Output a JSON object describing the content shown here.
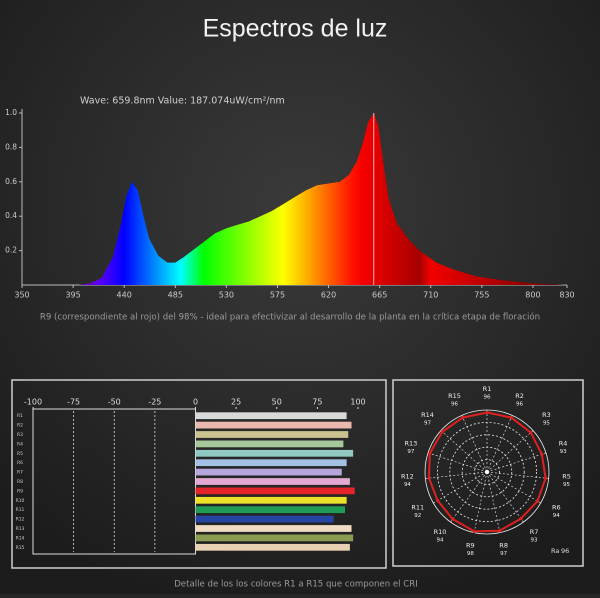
{
  "title": "Espectros de luz",
  "chart_data": [
    {
      "type": "area",
      "annotation": "Wave: 659.8nm Value: 187.074uW/cm²/nm",
      "marker_x": 659.8,
      "caption": "R9 (correspondiente al rojo) del 98% - ideal para efectivizar al desarrollo de la planta en la crítica etapa de floración",
      "x": [
        400,
        410,
        420,
        430,
        437,
        442,
        447,
        452,
        457,
        462,
        470,
        478,
        485,
        492,
        500,
        510,
        520,
        530,
        540,
        550,
        560,
        570,
        580,
        590,
        600,
        610,
        620,
        630,
        638,
        645,
        650,
        655,
        660,
        664,
        668,
        673,
        680,
        690,
        700,
        715,
        730,
        750,
        770,
        790,
        810,
        830
      ],
      "values": [
        0,
        0.01,
        0.04,
        0.16,
        0.35,
        0.52,
        0.6,
        0.55,
        0.4,
        0.27,
        0.17,
        0.13,
        0.13,
        0.16,
        0.2,
        0.25,
        0.3,
        0.33,
        0.35,
        0.37,
        0.4,
        0.43,
        0.47,
        0.51,
        0.55,
        0.58,
        0.59,
        0.6,
        0.64,
        0.72,
        0.82,
        0.95,
        1.0,
        0.92,
        0.72,
        0.5,
        0.36,
        0.27,
        0.2,
        0.13,
        0.09,
        0.05,
        0.03,
        0.015,
        0.006,
        0
      ],
      "xlim": [
        350,
        830
      ],
      "xticks": [
        350,
        395,
        440,
        485,
        530,
        575,
        620,
        665,
        710,
        755,
        800,
        830
      ],
      "ylim": [
        0,
        1
      ],
      "yticks": [
        0.2,
        0.4,
        0.6,
        0.8,
        {
          "value": 1,
          "label": "1.0"
        }
      ]
    },
    {
      "type": "hbar",
      "categories": [
        "R1",
        "R2",
        "R3",
        "R4",
        "R5",
        "R6",
        "R7",
        "R8",
        "R9",
        "R10",
        "R11",
        "R12",
        "R13",
        "R14",
        "R15"
      ],
      "values": [
        93,
        96,
        94,
        91,
        97,
        93,
        90,
        95,
        98,
        93,
        92,
        85,
        96,
        97,
        95
      ],
      "colors": [
        "#d9d9d9",
        "#e9b9ad",
        "#c9c48f",
        "#a6c79c",
        "#8fc9c2",
        "#a3c2e3",
        "#b5a6dc",
        "#e3a9d3",
        "#e3242b",
        "#ebe02a",
        "#1f9c55",
        "#2544a3",
        "#f0dcc4",
        "#8a9b52",
        "#ead0b2"
      ],
      "xlim": [
        -100,
        100
      ],
      "xticks": [
        -100,
        -75,
        -50,
        -25,
        0,
        25,
        50,
        75,
        100
      ]
    },
    {
      "type": "polar",
      "categories": [
        "R1",
        "R2",
        "R3",
        "R4",
        "R5",
        "R6",
        "R7",
        "R8",
        "R9",
        "R10",
        "R11",
        "R12",
        "R13",
        "R14",
        "R15"
      ],
      "values": [
        96,
        96,
        95,
        93,
        95,
        94,
        93,
        97,
        98,
        94,
        92,
        94,
        97,
        97,
        96
      ],
      "rlim": [
        0,
        100
      ],
      "color": "#e02020",
      "ra_name": "Ra",
      "ra_value": 96,
      "caption": "Detalle de los los colores R1 a R15 que componen el CRI"
    }
  ]
}
